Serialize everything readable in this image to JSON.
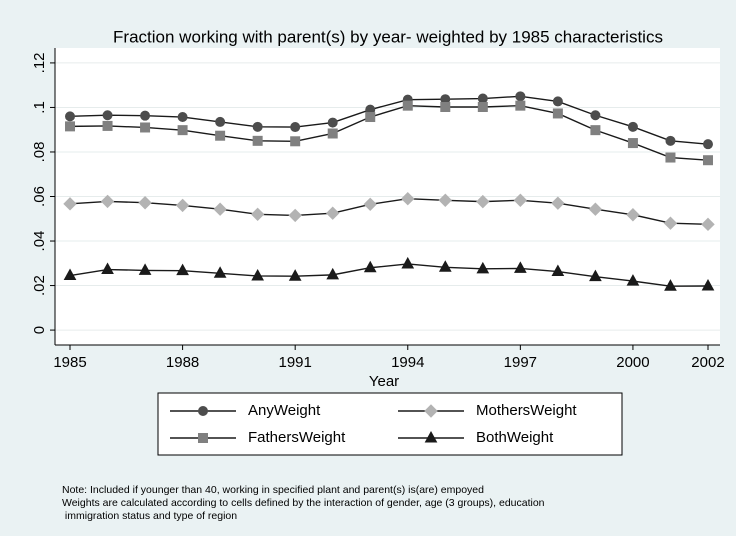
{
  "chart_data": {
    "type": "line",
    "title": "Fraction working with parent(s) by year- weighted by 1985 characteristics",
    "x_label": "Year",
    "x": [
      1985,
      1986,
      1987,
      1988,
      1989,
      1990,
      1991,
      1992,
      1993,
      1994,
      1995,
      1996,
      1997,
      1998,
      1999,
      2000,
      2001,
      2002
    ],
    "series": [
      {
        "name": "AnyWeight",
        "color": "#4d4d4d",
        "marker": "circle",
        "values": [
          0.096,
          0.0965,
          0.0963,
          0.0957,
          0.0935,
          0.0913,
          0.0912,
          0.0932,
          0.099,
          0.1035,
          0.1037,
          0.104,
          0.105,
          0.1027,
          0.0965,
          0.0913,
          0.085,
          0.0835
        ]
      },
      {
        "name": "MothersWeight",
        "color": "#b3b3b3",
        "marker": "diamond",
        "values": [
          0.0567,
          0.0578,
          0.0572,
          0.056,
          0.0543,
          0.052,
          0.0515,
          0.0525,
          0.0565,
          0.059,
          0.0583,
          0.0577,
          0.0583,
          0.057,
          0.0543,
          0.0518,
          0.048,
          0.0475
        ]
      },
      {
        "name": "FathersWeight",
        "color": "#808080",
        "marker": "square",
        "values": [
          0.0915,
          0.0917,
          0.091,
          0.0898,
          0.0873,
          0.085,
          0.0848,
          0.0883,
          0.0957,
          0.1008,
          0.1002,
          0.1002,
          0.1008,
          0.0973,
          0.0898,
          0.084,
          0.0775,
          0.0763
        ]
      },
      {
        "name": "BothWeight",
        "color": "#1a1a1a",
        "marker": "triangle",
        "values": [
          0.0245,
          0.0272,
          0.0268,
          0.0267,
          0.0255,
          0.0243,
          0.0242,
          0.0248,
          0.028,
          0.0297,
          0.0282,
          0.0275,
          0.0277,
          0.0263,
          0.024,
          0.022,
          0.0197,
          0.0198
        ]
      }
    ],
    "xlim": [
      1984.6,
      2002.32
    ],
    "xticks": [
      1985,
      1988,
      1991,
      1994,
      1997,
      2000,
      2002
    ],
    "ylim": [
      -0.0067,
      0.1267
    ],
    "yticks": [
      0,
      {
        "value": 0.02,
        "label": ".02"
      },
      {
        "value": 0.04,
        "label": ".04"
      },
      {
        "value": 0.06,
        "label": ".06"
      },
      {
        "value": 0.08,
        "label": ".08"
      },
      {
        "value": 0.1,
        "label": ".1"
      },
      {
        "value": 0.12,
        "label": ".12"
      }
    ],
    "grid": true,
    "note": [
      "Note: Included if younger than 40, working in specified plant and parent(s) is(are) empoyed",
      "Weights are calculated according to cells defined by the interaction of gender, age (3 groups), education",
      " immigration status and type of region"
    ]
  }
}
